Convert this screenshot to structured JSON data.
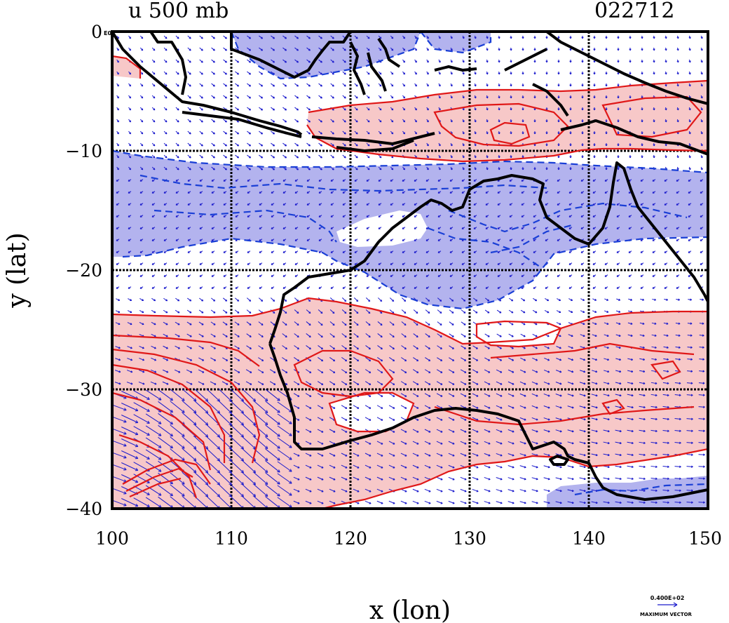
{
  "title_left": "u 500 mb",
  "title_right": "022712",
  "corner_label": "E0",
  "x_label": "x (lon)",
  "y_label": "y (lat)",
  "x_ticks": [
    "100",
    "110",
    "120",
    "130",
    "140",
    "150"
  ],
  "y_ticks": [
    "0",
    "−10",
    "−20",
    "−30",
    "−40"
  ],
  "vector_scale_value": "0.400E+02",
  "vector_scale_label": "MAXIMUM VECTOR",
  "map": {
    "lon_range": [
      100,
      150
    ],
    "lat_range": [
      -40,
      0
    ],
    "positive_shade": "#f7c8c8",
    "negative_shade": "#b3b3ee",
    "positive_contour": "#e01818",
    "negative_contour": "#1a3fd6",
    "coast_color": "#000000",
    "vector_color": "#1a1acc"
  }
}
